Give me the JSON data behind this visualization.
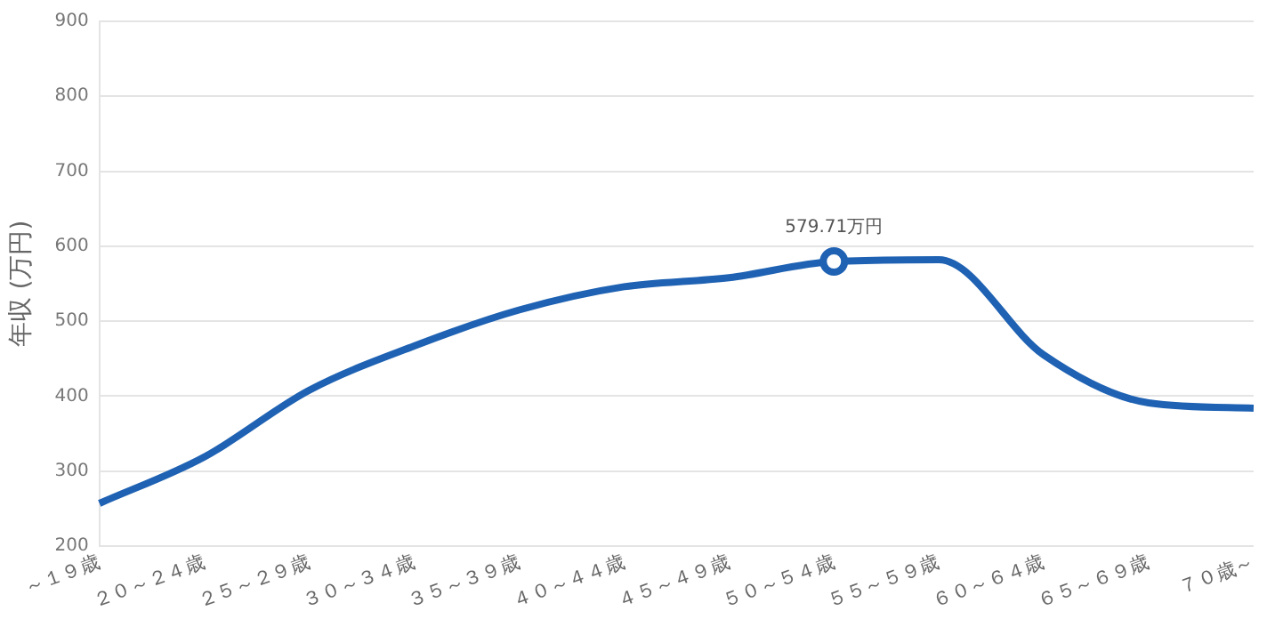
{
  "chart_data": {
    "type": "line",
    "ylabel": "年収 (万円)",
    "categories": [
      "～１９歳",
      "２０～２４歳",
      "２５～２９歳",
      "３０～３４歳",
      "３５～３９歳",
      "４０～４４歳",
      "４５～４９歳",
      "５０～５４歳",
      "５５～５９歳",
      "６０～６４歳",
      "６５～６９歳",
      "７０歳～"
    ],
    "series": [
      {
        "color": "#1f62b3",
        "values": [
          257,
          319,
          408,
          467,
          515,
          546,
          558,
          579.71,
          582,
          455,
          391,
          384
        ],
        "value_labels": [
          null,
          null,
          null,
          null,
          null,
          null,
          null,
          "579.71万円",
          null,
          null,
          null,
          null
        ]
      }
    ],
    "ylim": [
      200,
      900
    ],
    "yticks": [
      200,
      300,
      400,
      500,
      600,
      700,
      800,
      900
    ],
    "grid": "y",
    "legend": false
  }
}
